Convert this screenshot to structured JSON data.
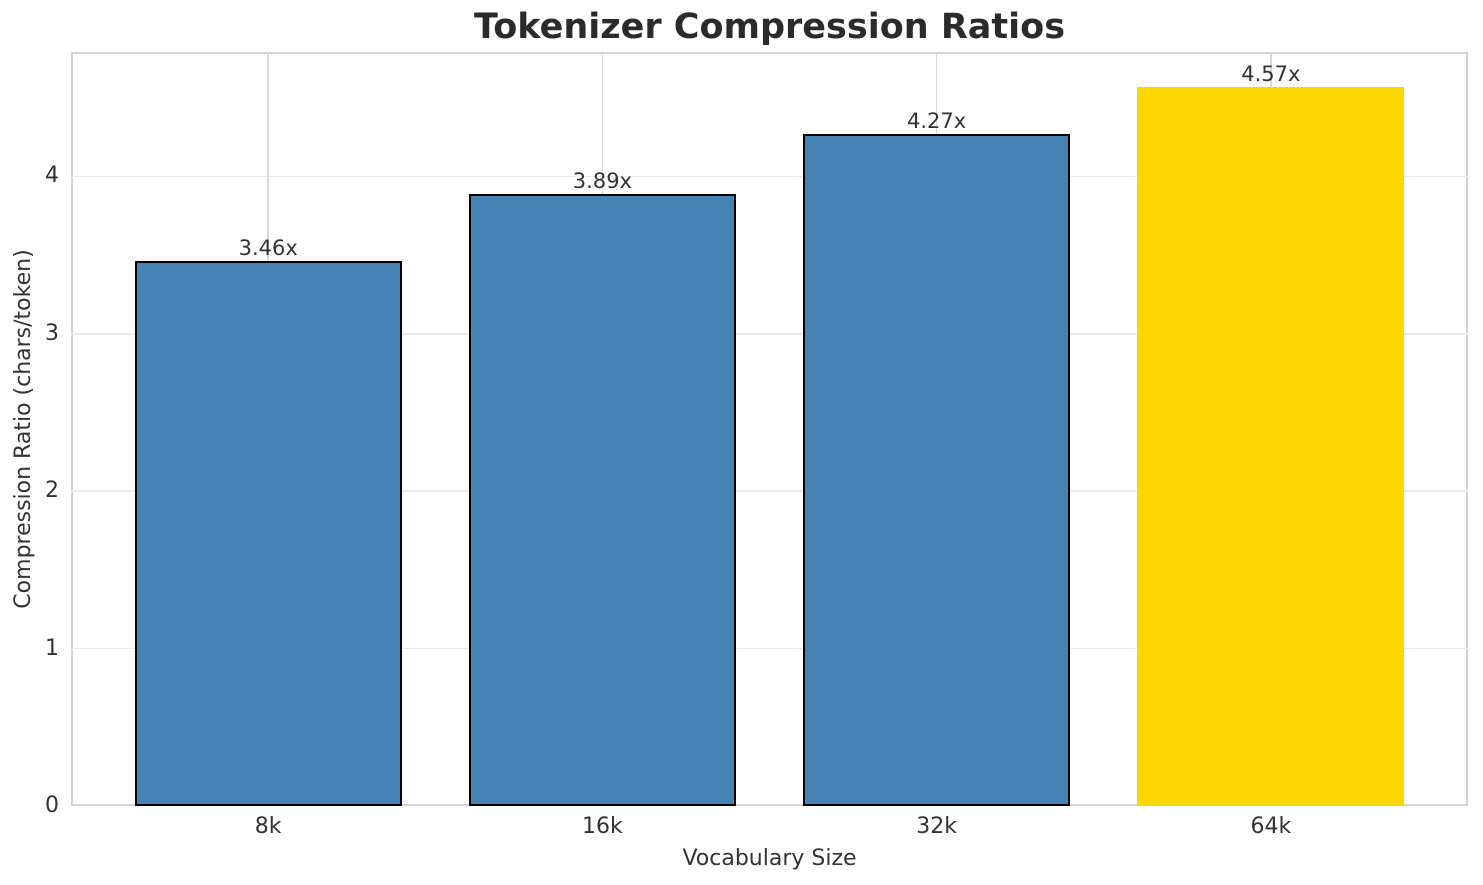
{
  "chart_data": {
    "type": "bar",
    "title": "Tokenizer Compression Ratios",
    "xlabel": "Vocabulary Size",
    "ylabel": "Compression Ratio (chars/token)",
    "categories": [
      "8k",
      "16k",
      "32k",
      "64k"
    ],
    "values": [
      3.46,
      3.89,
      4.27,
      4.57
    ],
    "bar_labels": [
      "3.46x",
      "3.89x",
      "4.27x",
      "4.57x"
    ],
    "yticks": [
      0,
      1,
      2,
      3,
      4
    ],
    "ylim": [
      0,
      4.79
    ],
    "grid": true,
    "legend": "none",
    "highlight_index": 3,
    "colors": {
      "bar": "#4682B4",
      "bar_highlight": "#FFD700",
      "bar_edge": "#000000",
      "title_text": "#2b2b2b",
      "label_text": "#333333",
      "grid_h": "#ebebeb",
      "grid_v": "#d9d9d9",
      "spine": "#d3d3d3",
      "background": "#ffffff"
    }
  }
}
